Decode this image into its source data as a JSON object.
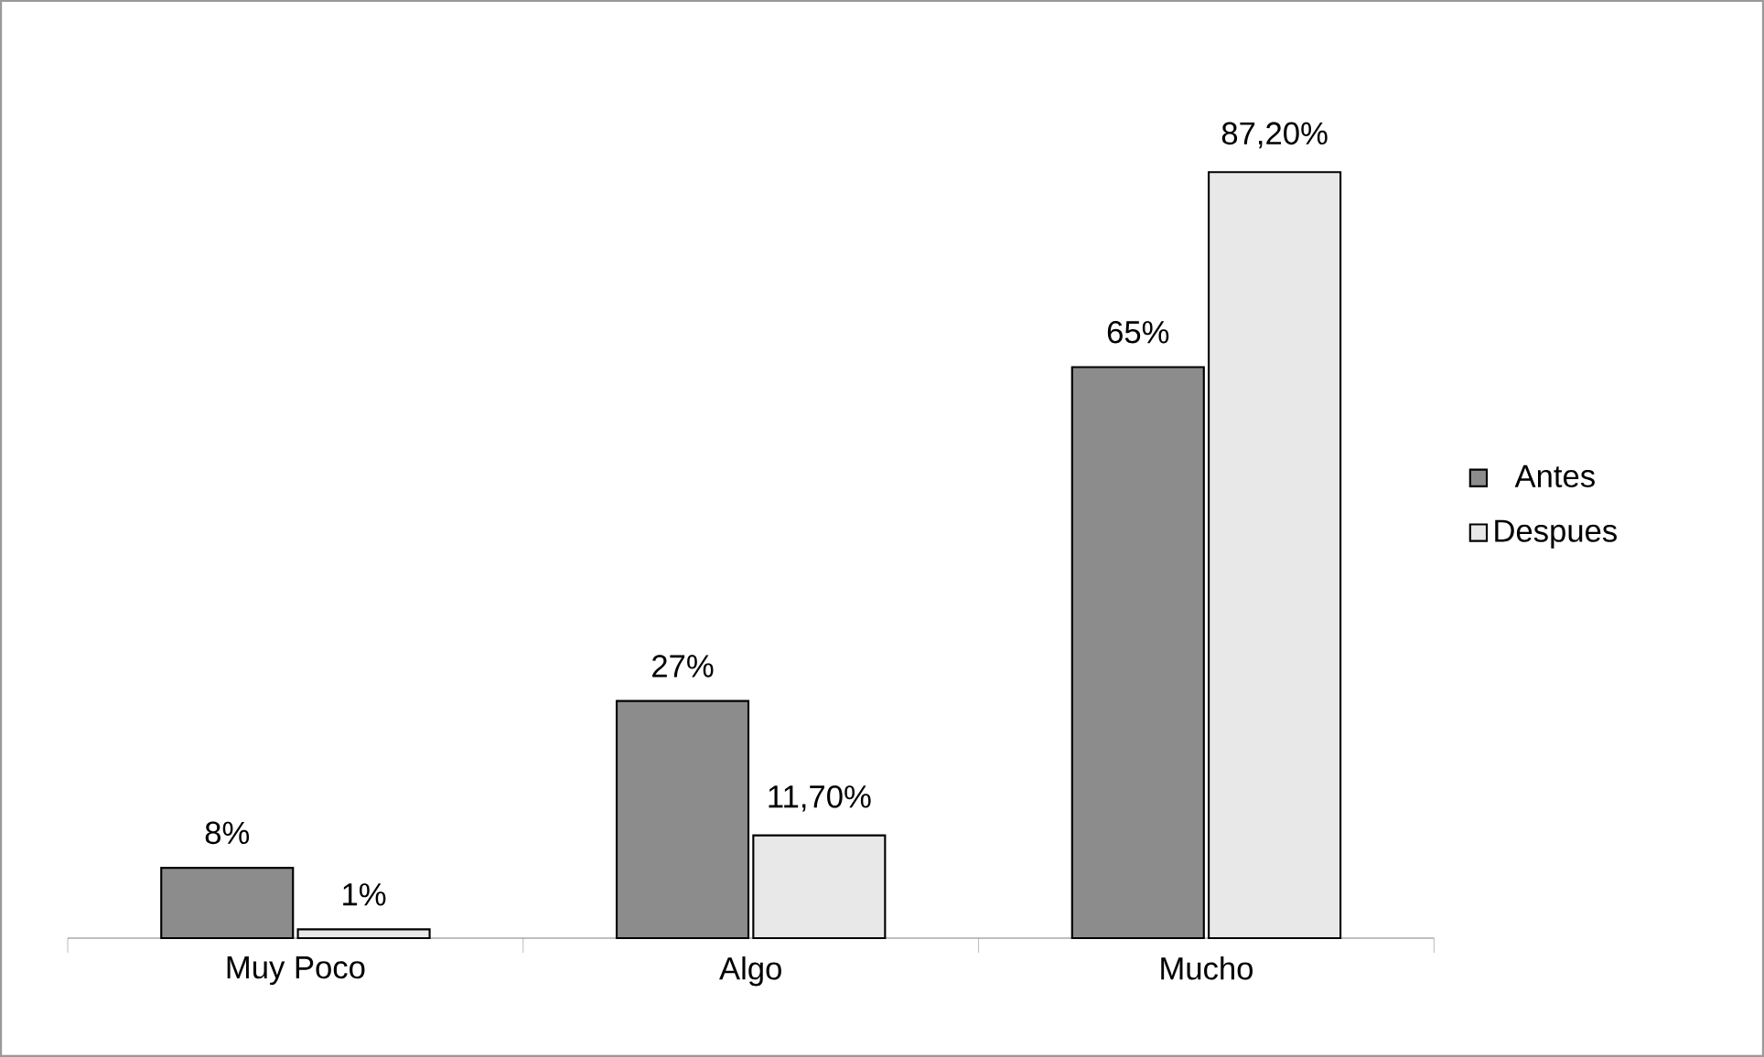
{
  "chart_data": {
    "type": "bar",
    "categories": [
      "Muy Poco",
      "Algo",
      "Mucho"
    ],
    "series": [
      {
        "name": "Antes",
        "color": "#8c8c8c",
        "values": [
          8,
          27,
          65
        ],
        "value_labels": [
          "8%",
          "27%",
          "65%"
        ]
      },
      {
        "name": "Despues",
        "color": "#e8e8e8",
        "values": [
          1,
          11.7,
          87.2
        ],
        "value_labels": [
          "1%",
          "11,70%",
          "87,20%"
        ]
      }
    ],
    "legend": "right"
  }
}
